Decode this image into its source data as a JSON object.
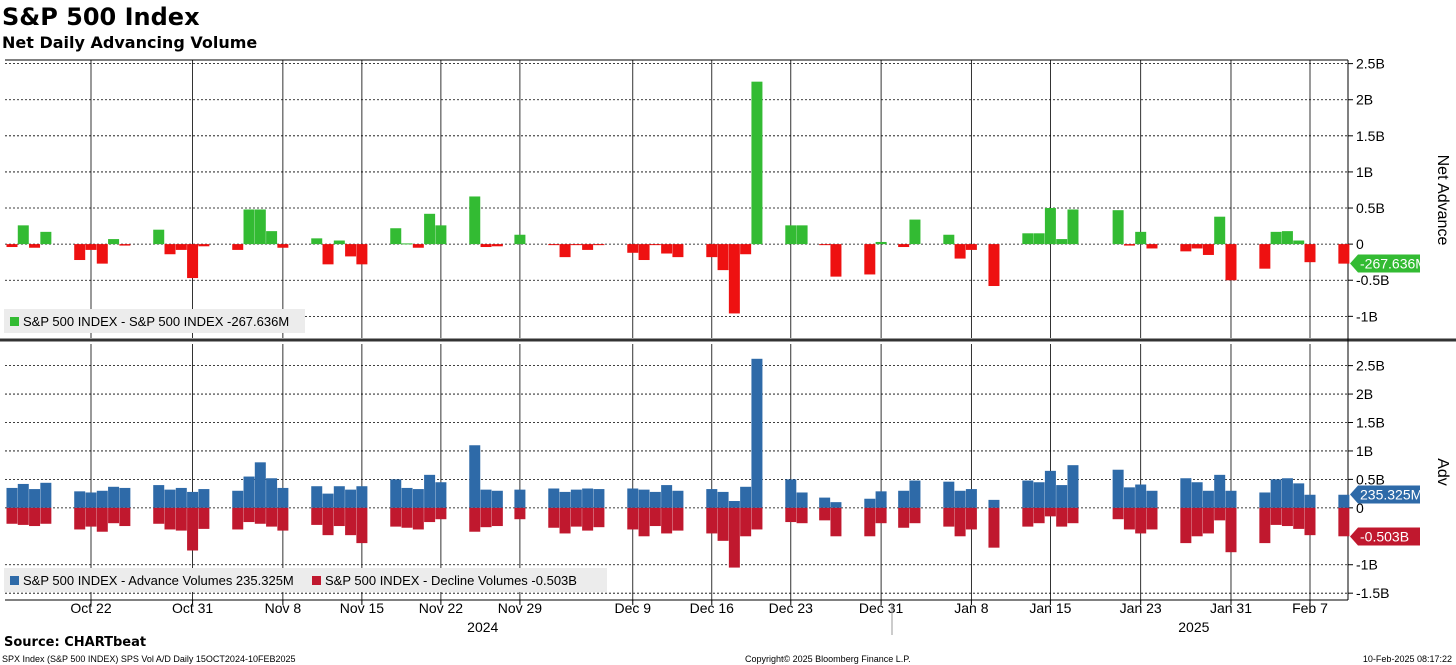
{
  "header": {
    "title": "S&P 500 Index",
    "subtitle": "Net Daily Advancing Volume"
  },
  "footer": {
    "source": "Source: CHARTbeat",
    "ticker_info": "SPX Index (S&P 500 INDEX) SPS Vol A/D  Daily 15OCT2024-10FEB2025",
    "copyright": "Copyright© 2025 Bloomberg Finance L.P.",
    "timestamp": "10-Feb-2025 08:17:22"
  },
  "colors": {
    "net_up": "#33bb33",
    "net_down": "#ee1111",
    "advance": "#2e6aa8",
    "decline": "#c0182e",
    "grid": "#000000"
  },
  "x_axis": {
    "ticks": [
      {
        "date": "2024-10-22",
        "label": "Oct 22"
      },
      {
        "date": "2024-10-31",
        "label": "Oct 31"
      },
      {
        "date": "2024-11-08",
        "label": "Nov 8"
      },
      {
        "date": "2024-11-15",
        "label": "Nov 15"
      },
      {
        "date": "2024-11-22",
        "label": "Nov 22"
      },
      {
        "date": "2024-11-29",
        "label": "Nov 29"
      },
      {
        "date": "2024-12-09",
        "label": "Dec 9"
      },
      {
        "date": "2024-12-16",
        "label": "Dec 16"
      },
      {
        "date": "2024-12-23",
        "label": "Dec 23"
      },
      {
        "date": "2024-12-31",
        "label": "Dec 31"
      },
      {
        "date": "2025-01-08",
        "label": "Jan 8"
      },
      {
        "date": "2025-01-15",
        "label": "Jan 15"
      },
      {
        "date": "2025-01-23",
        "label": "Jan 23"
      },
      {
        "date": "2025-01-31",
        "label": "Jan 31"
      },
      {
        "date": "2025-02-07",
        "label": "Feb 7"
      }
    ],
    "years": [
      {
        "date": "2024-11-25",
        "label": "2024"
      },
      {
        "date": "2025-01-27",
        "label": "2025"
      }
    ]
  },
  "chart_data": [
    {
      "type": "bar",
      "panel": "top",
      "ylabel": "Net Advance",
      "ylim": [
        -1.3,
        2.55
      ],
      "y_ticks": [
        {
          "v": 2.5,
          "label": "2.5B"
        },
        {
          "v": 2.0,
          "label": "2B"
        },
        {
          "v": 1.5,
          "label": "1.5B"
        },
        {
          "v": 1.0,
          "label": "1B"
        },
        {
          "v": 0.5,
          "label": "0.5B"
        },
        {
          "v": 0.0,
          "label": "0"
        },
        {
          "v": -0.5,
          "label": "-0.5B"
        },
        {
          "v": -1.0,
          "label": "-1B"
        }
      ],
      "last_value_label": "-267.636M",
      "last_value": -0.2676,
      "legend": [
        {
          "name": "S&P 500 INDEX - S&P 500 INDEX -267.636M",
          "color": "#33bb33"
        }
      ],
      "x": [
        "2024-10-15",
        "2024-10-16",
        "2024-10-17",
        "2024-10-18",
        "2024-10-21",
        "2024-10-22",
        "2024-10-23",
        "2024-10-24",
        "2024-10-25",
        "2024-10-28",
        "2024-10-29",
        "2024-10-30",
        "2024-10-31",
        "2024-11-01",
        "2024-11-04",
        "2024-11-05",
        "2024-11-06",
        "2024-11-07",
        "2024-11-08",
        "2024-11-11",
        "2024-11-12",
        "2024-11-13",
        "2024-11-14",
        "2024-11-15",
        "2024-11-18",
        "2024-11-19",
        "2024-11-20",
        "2024-11-21",
        "2024-11-22",
        "2024-11-25",
        "2024-11-26",
        "2024-11-27",
        "2024-11-29",
        "2024-12-02",
        "2024-12-03",
        "2024-12-04",
        "2024-12-05",
        "2024-12-06",
        "2024-12-09",
        "2024-12-10",
        "2024-12-11",
        "2024-12-12",
        "2024-12-13",
        "2024-12-16",
        "2024-12-17",
        "2024-12-18",
        "2024-12-19",
        "2024-12-20",
        "2024-12-23",
        "2024-12-24",
        "2024-12-26",
        "2024-12-27",
        "2024-12-30",
        "2024-12-31",
        "2025-01-02",
        "2025-01-03",
        "2025-01-06",
        "2025-01-07",
        "2025-01-08",
        "2025-01-10",
        "2025-01-13",
        "2025-01-14",
        "2025-01-15",
        "2025-01-16",
        "2025-01-17",
        "2025-01-21",
        "2025-01-22",
        "2025-01-23",
        "2025-01-24",
        "2025-01-27",
        "2025-01-28",
        "2025-01-29",
        "2025-01-30",
        "2025-01-31",
        "2025-02-03",
        "2025-02-04",
        "2025-02-05",
        "2025-02-06",
        "2025-02-07",
        "2025-02-10"
      ],
      "values": [
        -0.04,
        0.26,
        -0.05,
        0.17,
        -0.22,
        -0.08,
        -0.27,
        0.07,
        -0.02,
        0.2,
        -0.14,
        -0.08,
        -0.47,
        -0.03,
        -0.08,
        0.48,
        0.48,
        0.18,
        -0.05,
        0.08,
        -0.28,
        0.05,
        -0.17,
        -0.28,
        0.22,
        0.01,
        -0.05,
        0.42,
        0.26,
        0.66,
        -0.04,
        -0.03,
        0.13,
        -0.01,
        -0.18,
        -0.01,
        -0.08,
        -0.01,
        -0.12,
        -0.22,
        -0.01,
        -0.13,
        -0.18,
        -0.18,
        -0.36,
        -0.96,
        -0.14,
        2.25,
        0.26,
        0.26,
        -0.01,
        -0.45,
        -0.42,
        0.03,
        -0.04,
        0.34,
        0.13,
        -0.2,
        -0.08,
        -0.58,
        0.15,
        0.15,
        0.5,
        0.07,
        0.48,
        0.47,
        -0.02,
        0.17,
        -0.06,
        -0.1,
        -0.06,
        -0.15,
        0.38,
        -0.5,
        -0.34,
        0.17,
        0.18,
        0.05,
        -0.25,
        -0.27
      ]
    },
    {
      "type": "bar",
      "panel": "bottom",
      "ylabel": "Adv",
      "ylim": [
        -1.62,
        2.88
      ],
      "y_ticks": [
        {
          "v": 2.5,
          "label": "2.5B"
        },
        {
          "v": 2.0,
          "label": "2B"
        },
        {
          "v": 1.5,
          "label": "1.5B"
        },
        {
          "v": 1.0,
          "label": "1B"
        },
        {
          "v": 0.5,
          "label": "0.5B"
        },
        {
          "v": 0.0,
          "label": "0"
        },
        {
          "v": -1.0,
          "label": "-1B"
        },
        {
          "v": -1.5,
          "label": "-1.5B"
        }
      ],
      "last_value_labels": [
        {
          "value": 0.235,
          "label": "235.325M",
          "color": "#2e6aa8"
        },
        {
          "value": -0.503,
          "label": "-0.503B",
          "color": "#c0182e"
        }
      ],
      "legend": [
        {
          "name": "S&P 500 INDEX - Advance Volumes 235.325M",
          "color": "#2e6aa8"
        },
        {
          "name": "S&P 500 INDEX - Decline Volumes -0.503B",
          "color": "#c0182e"
        }
      ],
      "series": [
        {
          "name": "Advance Volumes",
          "color": "#2e6aa8",
          "values": [
            0.35,
            0.42,
            0.33,
            0.44,
            0.29,
            0.27,
            0.3,
            0.37,
            0.35,
            0.4,
            0.32,
            0.35,
            0.28,
            0.33,
            0.3,
            0.55,
            0.8,
            0.52,
            0.35,
            0.38,
            0.25,
            0.38,
            0.32,
            0.38,
            0.5,
            0.35,
            0.33,
            0.58,
            0.45,
            1.1,
            0.32,
            0.3,
            0.32,
            0.34,
            0.28,
            0.32,
            0.34,
            0.33,
            0.34,
            0.32,
            0.28,
            0.4,
            0.3,
            0.33,
            0.28,
            0.12,
            0.37,
            2.62,
            0.5,
            0.27,
            0.18,
            0.1,
            0.16,
            0.29,
            0.3,
            0.48,
            0.46,
            0.3,
            0.33,
            0.14,
            0.48,
            0.45,
            0.65,
            0.4,
            0.75,
            0.67,
            0.36,
            0.41,
            0.3,
            0.52,
            0.45,
            0.3,
            0.58,
            0.3,
            0.27,
            0.5,
            0.52,
            0.43,
            0.23,
            0.23
          ]
        },
        {
          "name": "Decline Volumes",
          "color": "#c0182e",
          "values": [
            -0.28,
            -0.3,
            -0.32,
            -0.28,
            -0.38,
            -0.33,
            -0.42,
            -0.27,
            -0.32,
            -0.28,
            -0.38,
            -0.4,
            -0.75,
            -0.37,
            -0.38,
            -0.25,
            -0.28,
            -0.33,
            -0.4,
            -0.3,
            -0.48,
            -0.32,
            -0.48,
            -0.62,
            -0.33,
            -0.35,
            -0.38,
            -0.25,
            -0.2,
            -0.42,
            -0.34,
            -0.32,
            -0.2,
            -0.35,
            -0.45,
            -0.33,
            -0.4,
            -0.34,
            -0.38,
            -0.5,
            -0.32,
            -0.45,
            -0.4,
            -0.45,
            -0.58,
            -1.05,
            -0.5,
            -0.38,
            -0.25,
            -0.27,
            -0.22,
            -0.5,
            -0.5,
            -0.27,
            -0.35,
            -0.27,
            -0.33,
            -0.5,
            -0.38,
            -0.7,
            -0.33,
            -0.27,
            -0.15,
            -0.33,
            -0.27,
            -0.2,
            -0.38,
            -0.45,
            -0.38,
            -0.62,
            -0.5,
            -0.45,
            -0.22,
            -0.78,
            -0.62,
            -0.3,
            -0.32,
            -0.37,
            -0.48,
            -0.5
          ]
        }
      ]
    }
  ]
}
